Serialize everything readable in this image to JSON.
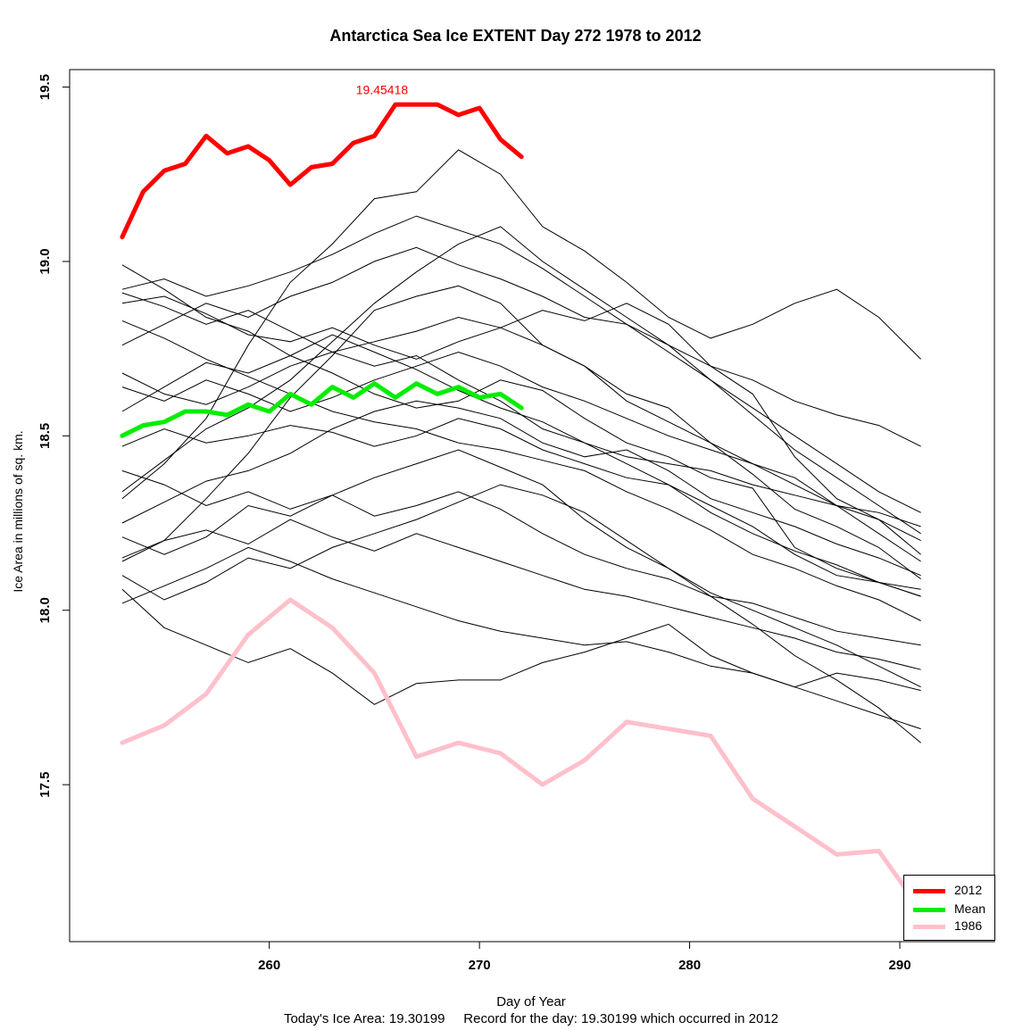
{
  "chart_data": {
    "type": "line",
    "title": "Antarctica Sea Ice EXTENT Day 272 1978 to 2012",
    "xlabel": "Day of Year",
    "ylabel": "Ice Area in millions of sq. km.",
    "footer": "Today's Ice Area: 19.30199     Record for the day: 19.30199 which occurred in 2012",
    "xlim": [
      250.5,
      294.5
    ],
    "ylim": [
      17.05,
      19.55
    ],
    "xticks": [
      "260",
      "270",
      "280",
      "290"
    ],
    "yticks": [
      "17.5",
      "18.0",
      "18.5",
      "19.0",
      "19.5"
    ],
    "max_annotation": {
      "x": 266,
      "y": 19.45418,
      "text": "19.45418"
    },
    "legend": [
      {
        "name": "2012",
        "color": "#ff0000"
      },
      {
        "name": "Mean",
        "color": "#00ee00"
      },
      {
        "name": "1986",
        "color": "#ffc0cb"
      }
    ],
    "series": [
      {
        "name": "2012",
        "color": "#ff0000",
        "x": [
          253,
          254,
          255,
          256,
          257,
          258,
          259,
          260,
          261,
          262,
          263,
          264,
          265,
          266,
          267,
          268,
          269,
          270,
          271,
          272
        ],
        "values": [
          19.07,
          19.2,
          19.26,
          19.28,
          19.36,
          19.31,
          19.33,
          19.29,
          19.22,
          19.27,
          19.28,
          19.34,
          19.36,
          19.45,
          19.45,
          19.45,
          19.42,
          19.44,
          19.35,
          19.3
        ]
      },
      {
        "name": "Mean",
        "color": "#00ee00",
        "x": [
          253,
          254,
          255,
          256,
          257,
          258,
          259,
          260,
          261,
          262,
          263,
          264,
          265,
          266,
          267,
          268,
          269,
          270,
          271,
          272
        ],
        "values": [
          18.5,
          18.53,
          18.54,
          18.57,
          18.57,
          18.56,
          18.59,
          18.57,
          18.62,
          18.59,
          18.64,
          18.61,
          18.65,
          18.61,
          18.65,
          18.62,
          18.64,
          18.61,
          18.62,
          18.58
        ]
      },
      {
        "name": "1986",
        "color": "#ffc0cb",
        "x": [
          253,
          255,
          257,
          259,
          261,
          263,
          265,
          267,
          269,
          271,
          273,
          275,
          277,
          279,
          281,
          283,
          285,
          287,
          289,
          291
        ],
        "values": [
          17.62,
          17.67,
          17.76,
          17.93,
          18.03,
          17.95,
          17.82,
          17.58,
          17.62,
          17.59,
          17.5,
          17.57,
          17.68,
          17.66,
          17.64,
          17.46,
          17.38,
          17.3,
          17.31,
          17.14
        ]
      }
    ],
    "background_years": [
      {
        "x": [
          253,
          255,
          257,
          259,
          261,
          263,
          265,
          267,
          269,
          271,
          273,
          275,
          277,
          279,
          281,
          283,
          285,
          287,
          289,
          291
        ],
        "values": [
          18.06,
          17.95,
          17.9,
          17.85,
          17.89,
          17.82,
          17.73,
          17.79,
          17.8,
          17.8,
          17.85,
          17.88,
          17.92,
          17.96,
          17.87,
          17.82,
          17.78,
          17.82,
          17.8,
          17.77
        ]
      },
      {
        "x": [
          253,
          255,
          257,
          259,
          261,
          263,
          265,
          267,
          269,
          271,
          273,
          275,
          277,
          279,
          281,
          283,
          285,
          287,
          289,
          291
        ],
        "values": [
          18.99,
          18.92,
          18.84,
          18.8,
          18.73,
          18.68,
          18.62,
          18.58,
          18.6,
          18.66,
          18.63,
          18.55,
          18.48,
          18.44,
          18.38,
          18.35,
          18.18,
          18.12,
          18.08,
          18.04
        ]
      },
      {
        "x": [
          253,
          255,
          257,
          259,
          261,
          263,
          265,
          267,
          269,
          271,
          273,
          275,
          277,
          279,
          281,
          283,
          285,
          287,
          289,
          291
        ],
        "values": [
          18.32,
          18.42,
          18.55,
          18.76,
          18.94,
          19.05,
          19.18,
          19.2,
          19.32,
          19.25,
          19.1,
          19.03,
          18.94,
          18.84,
          18.78,
          18.82,
          18.88,
          18.92,
          18.84,
          18.72
        ]
      },
      {
        "x": [
          253,
          255,
          257,
          259,
          261,
          263,
          265,
          267,
          269,
          271,
          273,
          275,
          277,
          279,
          281,
          283,
          285,
          287,
          289,
          291
        ],
        "values": [
          18.88,
          18.9,
          18.85,
          18.79,
          18.77,
          18.81,
          18.76,
          18.72,
          18.77,
          18.81,
          18.86,
          18.83,
          18.88,
          18.82,
          18.7,
          18.62,
          18.44,
          18.32,
          18.26,
          18.16
        ]
      },
      {
        "x": [
          253,
          255,
          257,
          259,
          261,
          263,
          265,
          267,
          269,
          271,
          273,
          275,
          277,
          279,
          281,
          283,
          285,
          287,
          289,
          291
        ],
        "values": [
          18.68,
          18.62,
          18.59,
          18.64,
          18.7,
          18.74,
          18.77,
          18.8,
          18.84,
          18.81,
          18.76,
          18.7,
          18.6,
          18.54,
          18.48,
          18.42,
          18.38,
          18.3,
          18.22,
          18.14
        ]
      },
      {
        "x": [
          253,
          255,
          257,
          259,
          261,
          263,
          265,
          267,
          269,
          271,
          273,
          275,
          277,
          279,
          281,
          283,
          285,
          287,
          289,
          291
        ],
        "values": [
          18.14,
          18.2,
          18.32,
          18.45,
          18.61,
          18.73,
          18.86,
          18.9,
          18.93,
          18.88,
          18.76,
          18.7,
          18.62,
          18.58,
          18.48,
          18.39,
          18.29,
          18.24,
          18.18,
          18.09
        ]
      },
      {
        "x": [
          253,
          255,
          257,
          259,
          261,
          263,
          265,
          267,
          269,
          271,
          273,
          275,
          277,
          279,
          281,
          283,
          285,
          287,
          289,
          291
        ],
        "values": [
          18.47,
          18.52,
          18.48,
          18.5,
          18.53,
          18.51,
          18.47,
          18.5,
          18.55,
          18.52,
          18.46,
          18.42,
          18.38,
          18.36,
          18.3,
          18.24,
          18.16,
          18.1,
          18.08,
          18.06
        ]
      },
      {
        "x": [
          253,
          255,
          257,
          259,
          261,
          263,
          265,
          267,
          269,
          271,
          273,
          275,
          277,
          279,
          281,
          283,
          285,
          287,
          289,
          291
        ],
        "values": [
          18.25,
          18.31,
          18.37,
          18.4,
          18.45,
          18.52,
          18.57,
          18.6,
          18.58,
          18.55,
          18.48,
          18.44,
          18.46,
          18.4,
          18.32,
          18.28,
          18.24,
          18.19,
          18.15,
          18.1
        ]
      },
      {
        "x": [
          253,
          255,
          257,
          259,
          261,
          263,
          265,
          267,
          269,
          271,
          273,
          275,
          277,
          279,
          281,
          283,
          285,
          287,
          289,
          291
        ],
        "values": [
          18.83,
          18.78,
          18.72,
          18.67,
          18.62,
          18.57,
          18.54,
          18.52,
          18.48,
          18.46,
          18.43,
          18.4,
          18.34,
          18.29,
          18.23,
          18.16,
          18.12,
          18.07,
          18.03,
          17.97
        ]
      },
      {
        "x": [
          253,
          255,
          257,
          259,
          261,
          263,
          265,
          267,
          269,
          271,
          273,
          275,
          277,
          279,
          281,
          283,
          285,
          287,
          289,
          291
        ],
        "values": [
          18.1,
          18.03,
          18.08,
          18.15,
          18.12,
          18.18,
          18.22,
          18.26,
          18.31,
          18.36,
          18.33,
          18.28,
          18.2,
          18.12,
          18.05,
          18.0,
          17.95,
          17.9,
          17.84,
          17.78
        ]
      },
      {
        "x": [
          253,
          255,
          257,
          259,
          261,
          263,
          265,
          267,
          269,
          271,
          273,
          275,
          277,
          279,
          281,
          283,
          285,
          287,
          289,
          291
        ],
        "values": [
          18.57,
          18.64,
          18.71,
          18.68,
          18.73,
          18.79,
          18.74,
          18.69,
          18.63,
          18.58,
          18.54,
          18.48,
          18.42,
          18.36,
          18.28,
          18.22,
          18.17,
          18.13,
          18.08,
          18.04
        ]
      },
      {
        "x": [
          253,
          255,
          257,
          259,
          261,
          263,
          265,
          267,
          269,
          271,
          273,
          275,
          277,
          279,
          281,
          283,
          285,
          287,
          289,
          291
        ],
        "values": [
          18.21,
          18.16,
          18.21,
          18.3,
          18.27,
          18.33,
          18.38,
          18.42,
          18.46,
          18.41,
          18.36,
          18.26,
          18.18,
          18.12,
          18.04,
          17.96,
          17.87,
          17.8,
          17.72,
          17.62
        ]
      },
      {
        "x": [
          253,
          255,
          257,
          259,
          261,
          263,
          265,
          267,
          269,
          271,
          273,
          275,
          277,
          279,
          281,
          283,
          285,
          287,
          289,
          291
        ],
        "values": [
          18.76,
          18.82,
          18.88,
          18.84,
          18.9,
          18.94,
          19.0,
          19.04,
          18.99,
          18.95,
          18.9,
          18.84,
          18.82,
          18.76,
          18.7,
          18.66,
          18.6,
          18.56,
          18.53,
          18.47
        ]
      },
      {
        "x": [
          253,
          255,
          257,
          259,
          261,
          263,
          265,
          267,
          269,
          271,
          273,
          275,
          277,
          279,
          281,
          283,
          285,
          287,
          289,
          291
        ],
        "values": [
          18.4,
          18.36,
          18.3,
          18.34,
          18.29,
          18.33,
          18.27,
          18.3,
          18.34,
          18.29,
          18.22,
          18.16,
          18.12,
          18.09,
          18.04,
          18.02,
          17.98,
          17.94,
          17.92,
          17.9
        ]
      },
      {
        "x": [
          253,
          255,
          257,
          259,
          261,
          263,
          265,
          267,
          269,
          271,
          273,
          275,
          277,
          279,
          281,
          283,
          285,
          287,
          289,
          291
        ],
        "values": [
          18.91,
          18.87,
          18.82,
          18.86,
          18.8,
          18.74,
          18.7,
          18.73,
          18.66,
          18.6,
          18.52,
          18.48,
          18.44,
          18.42,
          18.4,
          18.36,
          18.33,
          18.3,
          18.28,
          18.24
        ]
      },
      {
        "x": [
          253,
          255,
          257,
          259,
          261,
          263,
          265,
          267,
          269,
          271,
          273,
          275,
          277,
          279,
          281,
          283,
          285,
          287,
          289,
          291
        ],
        "values": [
          18.02,
          18.07,
          18.12,
          18.18,
          18.14,
          18.09,
          18.05,
          18.01,
          17.97,
          17.94,
          17.92,
          17.9,
          17.91,
          17.88,
          17.84,
          17.82,
          17.78,
          17.74,
          17.7,
          17.66
        ]
      },
      {
        "x": [
          253,
          255,
          257,
          259,
          261,
          263,
          265,
          267,
          269,
          271,
          273,
          275,
          277,
          279,
          281,
          283,
          285,
          287,
          289,
          291
        ],
        "values": [
          18.64,
          18.6,
          18.66,
          18.62,
          18.57,
          18.61,
          18.66,
          18.7,
          18.74,
          18.7,
          18.64,
          18.6,
          18.55,
          18.5,
          18.46,
          18.42,
          18.36,
          18.3,
          18.26,
          18.2
        ]
      },
      {
        "x": [
          253,
          255,
          257,
          259,
          261,
          263,
          265,
          267,
          269,
          271,
          273,
          275,
          277,
          279,
          281,
          283,
          285,
          287,
          289,
          291
        ],
        "values": [
          18.34,
          18.43,
          18.52,
          18.58,
          18.66,
          18.77,
          18.88,
          18.97,
          19.05,
          19.1,
          19.0,
          18.92,
          18.84,
          18.76,
          18.66,
          18.58,
          18.5,
          18.42,
          18.34,
          18.28
        ]
      },
      {
        "x": [
          253,
          255,
          257,
          259,
          261,
          263,
          265,
          267,
          269,
          271,
          273,
          275,
          277,
          279,
          281,
          283,
          285,
          287,
          289,
          291
        ],
        "values": [
          18.15,
          18.2,
          18.23,
          18.19,
          18.26,
          18.21,
          18.17,
          18.22,
          18.18,
          18.14,
          18.1,
          18.06,
          18.04,
          18.01,
          17.98,
          17.95,
          17.92,
          17.88,
          17.86,
          17.83
        ]
      },
      {
        "x": [
          253,
          255,
          257,
          259,
          261,
          263,
          265,
          267,
          269,
          271,
          273,
          275,
          277,
          279,
          281,
          283,
          285,
          287,
          289,
          291
        ],
        "values": [
          18.92,
          18.95,
          18.9,
          18.93,
          18.97,
          19.02,
          19.08,
          19.13,
          19.09,
          19.05,
          18.98,
          18.9,
          18.82,
          18.74,
          18.66,
          18.56,
          18.46,
          18.38,
          18.3,
          18.22
        ]
      }
    ]
  }
}
